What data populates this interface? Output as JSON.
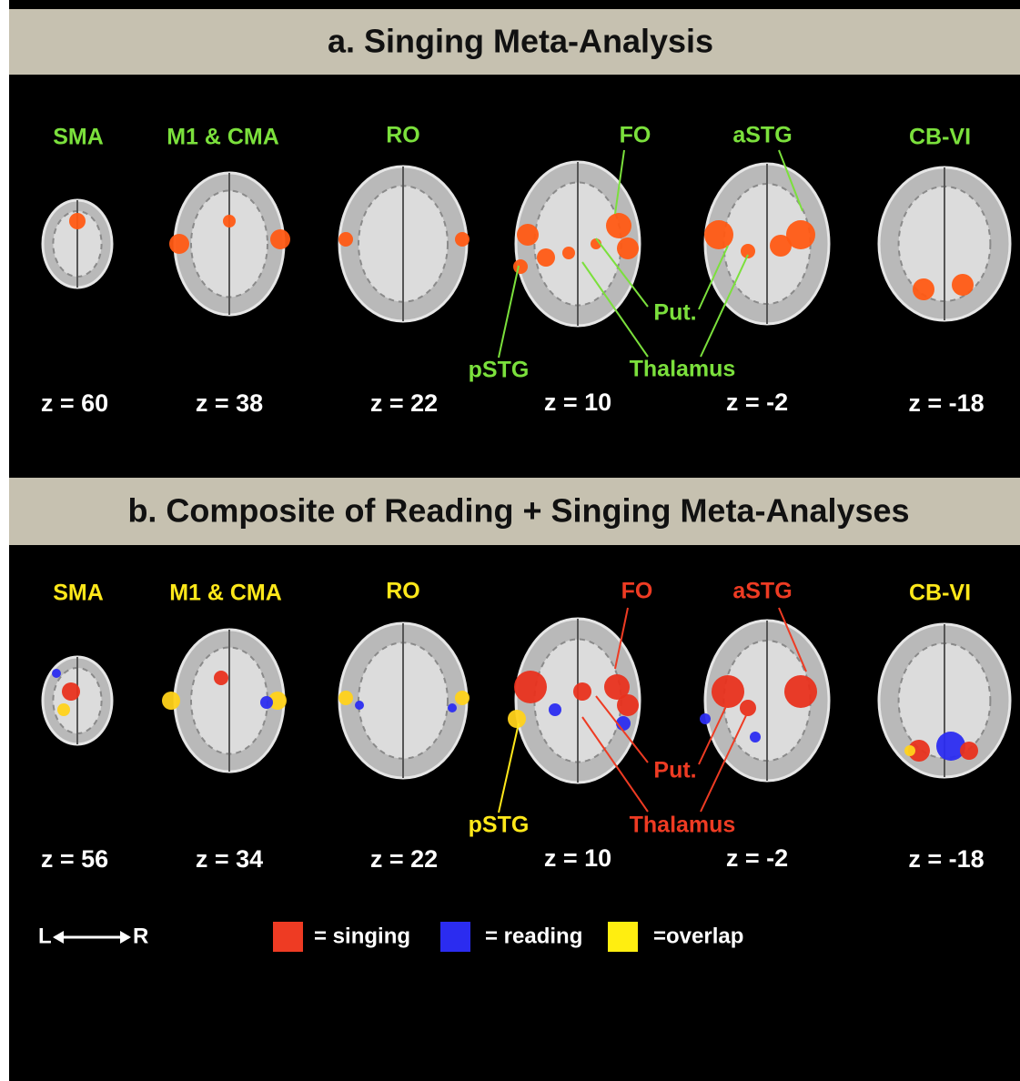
{
  "panels": [
    {
      "title": "a. Singing Meta-Analysis",
      "region_labels": [
        "SMA",
        "M1 & CMA",
        "RO",
        "FO",
        "aSTG",
        "CB-VI"
      ],
      "annotations": [
        "pSTG",
        "Put.",
        "Thalamus"
      ],
      "slices": [
        "z = 60",
        "z = 38",
        "z = 22",
        "z = 10",
        "z = -2",
        "z = -18"
      ]
    },
    {
      "title": "b. Composite of Reading + Singing Meta-Analyses",
      "region_labels": [
        "SMA",
        "M1 & CMA",
        "RO",
        "FO",
        "aSTG",
        "CB-VI"
      ],
      "annotations": [
        "pSTG",
        "Put.",
        "Thalamus"
      ],
      "slices": [
        "z = 56",
        "z = 34",
        "z = 22",
        "z = 10",
        "z = -2",
        "z = -18"
      ]
    }
  ],
  "legend": {
    "left": "L",
    "right": "R",
    "items": [
      "= singing",
      "= reading",
      "=overlap"
    ]
  }
}
